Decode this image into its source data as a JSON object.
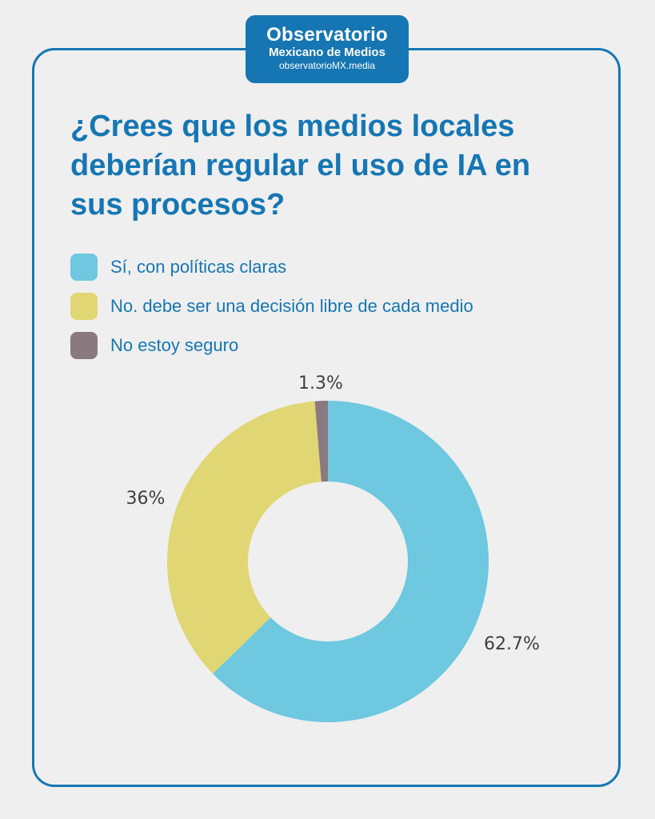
{
  "logo": {
    "name": "Observatorio",
    "subtitle": "Mexicano de Medios",
    "url": "observatorioMX.media"
  },
  "title": "¿Crees que los medios locales deberían regular el uso de IA en sus procesos?",
  "colors": {
    "brand": "#1676b3",
    "background": "#efefef"
  },
  "chart_data": {
    "type": "pie",
    "style": "donut",
    "title": "¿Crees que los medios locales deberían regular el uso de IA en sus procesos?",
    "legend_position": "top-left",
    "slices": [
      {
        "label": "Sí, con políticas claras",
        "value": 62.7,
        "display": "62.7%",
        "color": "#6dc8e0"
      },
      {
        "label": "No. debe ser una decisión libre de cada medio",
        "value": 36,
        "display": "36%",
        "color": "#e0d674"
      },
      {
        "label": "No estoy seguro",
        "value": 1.3,
        "display": "1.3%",
        "color": "#8a7a80"
      }
    ]
  }
}
